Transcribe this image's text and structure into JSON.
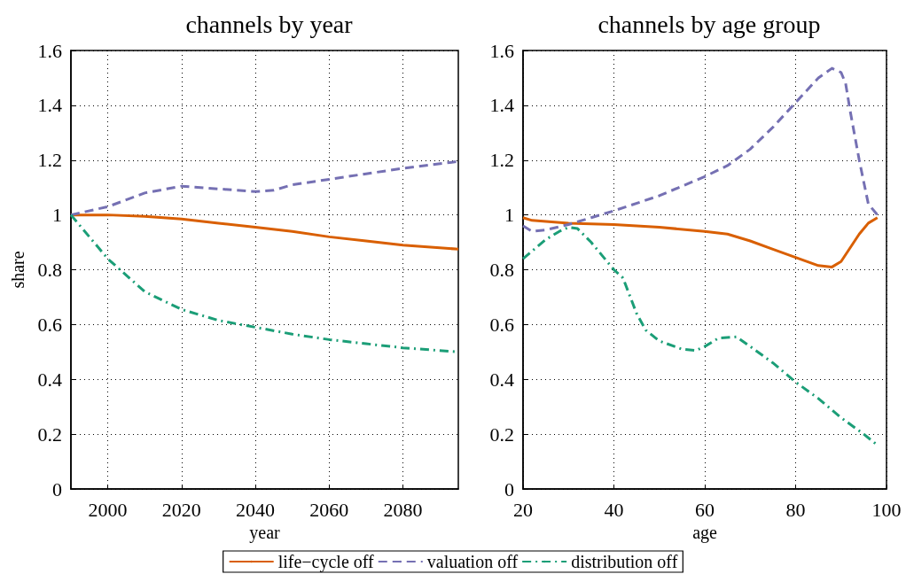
{
  "chart_data": [
    {
      "type": "line",
      "title": "channels by year",
      "xlabel": "year",
      "ylabel": "share",
      "xlim": [
        1990,
        2095
      ],
      "xticks": [
        2000,
        2020,
        2040,
        2060,
        2080
      ],
      "ylim": [
        0,
        1.6
      ],
      "yticks": [
        0,
        0.2,
        0.4,
        0.6,
        0.8,
        1,
        1.2,
        1.4,
        1.6
      ],
      "grid": true,
      "legend": "bottom",
      "marker": "none",
      "series": [
        {
          "name": "life−cycle off",
          "color": "#d95f02",
          "line_style": "solid",
          "x": [
            1990,
            2000,
            2010,
            2020,
            2030,
            2040,
            2050,
            2060,
            2070,
            2080,
            2095
          ],
          "values": [
            1.0,
            1.0,
            0.995,
            0.985,
            0.97,
            0.955,
            0.94,
            0.92,
            0.905,
            0.89,
            0.875
          ]
        },
        {
          "name": "valuation off",
          "color": "#7570b3",
          "line_style": "dashed",
          "x": [
            1990,
            2000,
            2010,
            2020,
            2030,
            2040,
            2045,
            2050,
            2060,
            2070,
            2080,
            2095
          ],
          "values": [
            1.0,
            1.03,
            1.08,
            1.105,
            1.095,
            1.085,
            1.09,
            1.11,
            1.13,
            1.15,
            1.17,
            1.195
          ]
        },
        {
          "name": "distribution off",
          "color": "#1b9e77",
          "line_style": "dashdot",
          "x": [
            1990,
            2000,
            2010,
            2020,
            2030,
            2040,
            2050,
            2060,
            2070,
            2080,
            2095
          ],
          "values": [
            1.0,
            0.84,
            0.72,
            0.655,
            0.615,
            0.59,
            0.565,
            0.545,
            0.53,
            0.515,
            0.5
          ]
        }
      ]
    },
    {
      "type": "line",
      "title": "channels by age group",
      "xlabel": "age",
      "xlim": [
        20,
        100
      ],
      "xticks": [
        20,
        40,
        60,
        80,
        100
      ],
      "ylim": [
        0,
        1.6
      ],
      "yticks": [
        0,
        0.2,
        0.4,
        0.6,
        0.8,
        1,
        1.2,
        1.4,
        1.6
      ],
      "grid": true,
      "marker": "none",
      "series": [
        {
          "color": "#d95f02",
          "line_style": "solid",
          "x": [
            20,
            22,
            30,
            40,
            50,
            60,
            65,
            70,
            75,
            80,
            85,
            88,
            90,
            92,
            94,
            96,
            98
          ],
          "values": [
            0.99,
            0.98,
            0.97,
            0.965,
            0.955,
            0.94,
            0.93,
            0.905,
            0.875,
            0.845,
            0.815,
            0.81,
            0.83,
            0.88,
            0.93,
            0.97,
            0.99
          ]
        },
        {
          "color": "#7570b3",
          "line_style": "dashed",
          "x": [
            20,
            22,
            25,
            30,
            35,
            40,
            50,
            60,
            65,
            70,
            75,
            80,
            85,
            88,
            90,
            91,
            92,
            94,
            96,
            98
          ],
          "values": [
            0.96,
            0.94,
            0.945,
            0.965,
            0.99,
            1.015,
            1.07,
            1.14,
            1.18,
            1.24,
            1.32,
            1.41,
            1.5,
            1.535,
            1.52,
            1.48,
            1.38,
            1.2,
            1.04,
            1.0
          ]
        },
        {
          "color": "#1b9e77",
          "line_style": "dashdot",
          "x": [
            20,
            25,
            28,
            30,
            32,
            35,
            40,
            42,
            45,
            47,
            50,
            55,
            58,
            60,
            63,
            67,
            70,
            75,
            80,
            85,
            90,
            95,
            98
          ],
          "values": [
            0.84,
            0.91,
            0.94,
            0.955,
            0.95,
            0.9,
            0.8,
            0.77,
            0.64,
            0.58,
            0.54,
            0.51,
            0.505,
            0.52,
            0.55,
            0.555,
            0.52,
            0.46,
            0.39,
            0.33,
            0.26,
            0.2,
            0.16
          ]
        }
      ]
    }
  ]
}
